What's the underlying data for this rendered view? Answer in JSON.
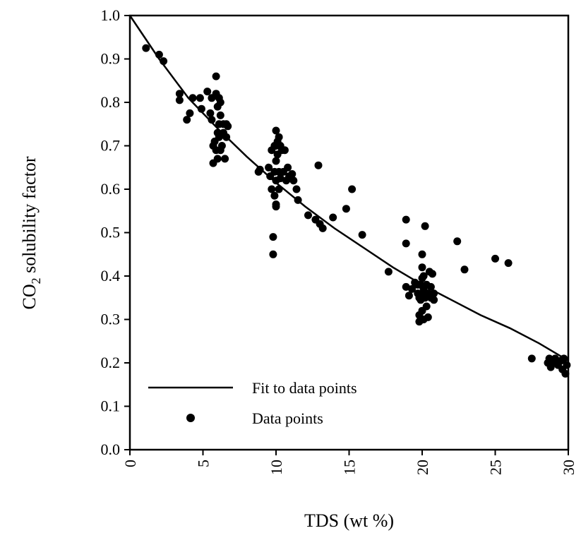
{
  "chart_data": {
    "type": "scatter",
    "xlabel": "TDS (wt %)",
    "ylabel_main": "CO",
    "ylabel_sub": "2",
    "ylabel_rest": " solubility factor",
    "xlim": [
      0,
      30
    ],
    "ylim": [
      0,
      1.0
    ],
    "x_ticks": [
      {
        "value": 0,
        "label": "0"
      },
      {
        "value": 5,
        "label": "5"
      },
      {
        "value": 10,
        "label": "10"
      },
      {
        "value": 15,
        "label": "15"
      },
      {
        "value": 20,
        "label": "20"
      },
      {
        "value": 25,
        "label": "25"
      },
      {
        "value": 30,
        "label": "30"
      }
    ],
    "y_ticks": [
      {
        "value": 0.0,
        "label": "0.0"
      },
      {
        "value": 0.1,
        "label": "0.1"
      },
      {
        "value": 0.2,
        "label": "0.2"
      },
      {
        "value": 0.3,
        "label": "0.3"
      },
      {
        "value": 0.4,
        "label": "0.4"
      },
      {
        "value": 0.5,
        "label": "0.5"
      },
      {
        "value": 0.6,
        "label": "0.6"
      },
      {
        "value": 0.7,
        "label": "0.7"
      },
      {
        "value": 0.8,
        "label": "0.8"
      },
      {
        "value": 0.9,
        "label": "0.9"
      },
      {
        "value": 1.0,
        "label": "1.0"
      }
    ],
    "grid": false,
    "legend_position": "bottom-left",
    "series": [
      {
        "name": "Fit to data points",
        "kind": "line",
        "color": "#000000",
        "points": [
          [
            0,
            1.0
          ],
          [
            2,
            0.9
          ],
          [
            4,
            0.81
          ],
          [
            6,
            0.74
          ],
          [
            8,
            0.675
          ],
          [
            10,
            0.615
          ],
          [
            12,
            0.56
          ],
          [
            14,
            0.51
          ],
          [
            16,
            0.465
          ],
          [
            18,
            0.42
          ],
          [
            20,
            0.38
          ],
          [
            22,
            0.345
          ],
          [
            24,
            0.31
          ],
          [
            26,
            0.28
          ],
          [
            28,
            0.245
          ],
          [
            30,
            0.205
          ]
        ]
      },
      {
        "name": "Data points",
        "kind": "scatter",
        "color": "#000000",
        "points": [
          [
            1.1,
            0.925
          ],
          [
            2.0,
            0.91
          ],
          [
            2.3,
            0.895
          ],
          [
            3.4,
            0.82
          ],
          [
            3.4,
            0.805
          ],
          [
            3.9,
            0.76
          ],
          [
            4.1,
            0.775
          ],
          [
            4.3,
            0.81
          ],
          [
            4.8,
            0.81
          ],
          [
            4.9,
            0.785
          ],
          [
            5.3,
            0.825
          ],
          [
            5.5,
            0.775
          ],
          [
            5.6,
            0.81
          ],
          [
            5.6,
            0.76
          ],
          [
            5.7,
            0.7
          ],
          [
            5.7,
            0.66
          ],
          [
            5.8,
            0.71
          ],
          [
            5.9,
            0.86
          ],
          [
            5.9,
            0.82
          ],
          [
            5.9,
            0.69
          ],
          [
            6.0,
            0.79
          ],
          [
            6.0,
            0.73
          ],
          [
            6.0,
            0.67
          ],
          [
            6.1,
            0.81
          ],
          [
            6.1,
            0.75
          ],
          [
            6.1,
            0.72
          ],
          [
            6.2,
            0.8
          ],
          [
            6.2,
            0.77
          ],
          [
            6.2,
            0.69
          ],
          [
            6.3,
            0.7
          ],
          [
            6.4,
            0.75
          ],
          [
            6.4,
            0.73
          ],
          [
            6.5,
            0.67
          ],
          [
            6.6,
            0.75
          ],
          [
            6.6,
            0.72
          ],
          [
            6.7,
            0.745
          ],
          [
            8.8,
            0.64
          ],
          [
            8.9,
            0.645
          ],
          [
            9.5,
            0.65
          ],
          [
            9.6,
            0.63
          ],
          [
            9.7,
            0.69
          ],
          [
            9.7,
            0.6
          ],
          [
            9.8,
            0.49
          ],
          [
            9.8,
            0.45
          ],
          [
            9.9,
            0.7
          ],
          [
            9.9,
            0.64
          ],
          [
            9.9,
            0.585
          ],
          [
            10.0,
            0.735
          ],
          [
            10.0,
            0.7
          ],
          [
            10.0,
            0.665
          ],
          [
            10.0,
            0.62
          ],
          [
            10.0,
            0.565
          ],
          [
            10.0,
            0.56
          ],
          [
            10.1,
            0.71
          ],
          [
            10.1,
            0.68
          ],
          [
            10.2,
            0.72
          ],
          [
            10.2,
            0.64
          ],
          [
            10.2,
            0.6
          ],
          [
            10.3,
            0.7
          ],
          [
            10.3,
            0.625
          ],
          [
            10.4,
            0.69
          ],
          [
            10.5,
            0.64
          ],
          [
            10.6,
            0.69
          ],
          [
            10.7,
            0.62
          ],
          [
            10.8,
            0.65
          ],
          [
            10.9,
            0.63
          ],
          [
            11.1,
            0.635
          ],
          [
            11.2,
            0.62
          ],
          [
            11.4,
            0.6
          ],
          [
            11.5,
            0.575
          ],
          [
            12.2,
            0.54
          ],
          [
            12.7,
            0.53
          ],
          [
            12.9,
            0.655
          ],
          [
            13.0,
            0.52
          ],
          [
            13.2,
            0.51
          ],
          [
            13.9,
            0.535
          ],
          [
            14.8,
            0.555
          ],
          [
            15.2,
            0.6
          ],
          [
            15.9,
            0.495
          ],
          [
            17.7,
            0.41
          ],
          [
            18.9,
            0.53
          ],
          [
            18.9,
            0.475
          ],
          [
            18.9,
            0.375
          ],
          [
            19.1,
            0.355
          ],
          [
            19.3,
            0.37
          ],
          [
            19.5,
            0.385
          ],
          [
            19.7,
            0.38
          ],
          [
            19.7,
            0.36
          ],
          [
            19.8,
            0.35
          ],
          [
            19.8,
            0.31
          ],
          [
            19.8,
            0.295
          ],
          [
            19.9,
            0.38
          ],
          [
            19.9,
            0.345
          ],
          [
            20.0,
            0.45
          ],
          [
            20.0,
            0.42
          ],
          [
            20.0,
            0.395
          ],
          [
            20.0,
            0.36
          ],
          [
            20.0,
            0.32
          ],
          [
            20.1,
            0.4
          ],
          [
            20.1,
            0.37
          ],
          [
            20.1,
            0.3
          ],
          [
            20.2,
            0.515
          ],
          [
            20.2,
            0.35
          ],
          [
            20.3,
            0.38
          ],
          [
            20.3,
            0.33
          ],
          [
            20.4,
            0.36
          ],
          [
            20.4,
            0.305
          ],
          [
            20.5,
            0.41
          ],
          [
            20.6,
            0.375
          ],
          [
            20.6,
            0.35
          ],
          [
            20.7,
            0.405
          ],
          [
            20.8,
            0.36
          ],
          [
            20.8,
            0.345
          ],
          [
            22.4,
            0.48
          ],
          [
            22.9,
            0.415
          ],
          [
            25.0,
            0.44
          ],
          [
            25.9,
            0.43
          ],
          [
            27.5,
            0.21
          ],
          [
            28.6,
            0.2
          ],
          [
            28.7,
            0.21
          ],
          [
            28.8,
            0.19
          ],
          [
            28.9,
            0.2
          ],
          [
            29.1,
            0.21
          ],
          [
            29.2,
            0.2
          ],
          [
            29.3,
            0.195
          ],
          [
            29.5,
            0.205
          ],
          [
            29.6,
            0.185
          ],
          [
            29.7,
            0.21
          ],
          [
            29.8,
            0.175
          ],
          [
            29.9,
            0.195
          ]
        ]
      }
    ]
  }
}
